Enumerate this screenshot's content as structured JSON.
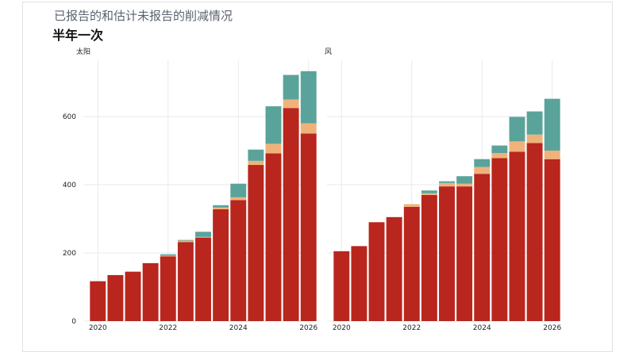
{
  "header": {
    "title": "已报告的和估计未报告的削减情况",
    "subtitle": "半年一次"
  },
  "colors": {
    "reported": "#b8261e",
    "light": "#f0b27a",
    "teal": "#5aa39a",
    "grid": "#e9e9e9",
    "panel_bg": "#ffffff"
  },
  "chart_data": [
    {
      "type": "bar",
      "stacked": true,
      "panel_label": "太阳",
      "x": [
        2020,
        2020.5,
        2021,
        2021.5,
        2022,
        2022.5,
        2023,
        2023.5,
        2024,
        2024.5,
        2025,
        2025.5,
        2026
      ],
      "x_ticks": [
        "2020",
        "2022",
        "2024",
        "2026"
      ],
      "x_tick_values": [
        2020,
        2022,
        2024,
        2026
      ],
      "y_ticks": [
        "0",
        "200",
        "400",
        "600"
      ],
      "y_tick_values": [
        0,
        200,
        400,
        600
      ],
      "ylim": [
        0,
        765
      ],
      "grid": true,
      "series": [
        {
          "color_key": "reported",
          "values": [
            117,
            135,
            145,
            170,
            190,
            232,
            245,
            328,
            355,
            458,
            492,
            625,
            550
          ]
        },
        {
          "color_key": "light",
          "values": [
            0,
            0,
            0,
            0,
            2,
            4,
            2,
            5,
            8,
            12,
            28,
            25,
            30
          ]
        },
        {
          "color_key": "teal",
          "values": [
            0,
            0,
            0,
            0,
            4,
            2,
            15,
            7,
            40,
            33,
            110,
            72,
            153
          ]
        }
      ]
    },
    {
      "type": "bar",
      "stacked": true,
      "panel_label": "风",
      "x": [
        2020,
        2020.5,
        2021,
        2021.5,
        2022,
        2022.5,
        2023,
        2023.5,
        2024,
        2024.5,
        2025,
        2025.5,
        2026
      ],
      "x_ticks": [
        "2020",
        "2022",
        "2024",
        "2026"
      ],
      "x_tick_values": [
        2020,
        2022,
        2024,
        2026
      ],
      "y_ticks": [],
      "y_tick_values": [
        0,
        200,
        400,
        600
      ],
      "ylim": [
        0,
        765
      ],
      "grid": true,
      "series": [
        {
          "color_key": "reported",
          "values": [
            205,
            220,
            290,
            305,
            335,
            370,
            395,
            395,
            432,
            478,
            497,
            522,
            475
          ]
        },
        {
          "color_key": "light",
          "values": [
            0,
            0,
            0,
            0,
            8,
            5,
            10,
            8,
            20,
            15,
            30,
            25,
            25
          ]
        },
        {
          "color_key": "teal",
          "values": [
            0,
            0,
            0,
            0,
            0,
            8,
            5,
            22,
            23,
            22,
            72,
            68,
            152
          ]
        }
      ]
    }
  ]
}
